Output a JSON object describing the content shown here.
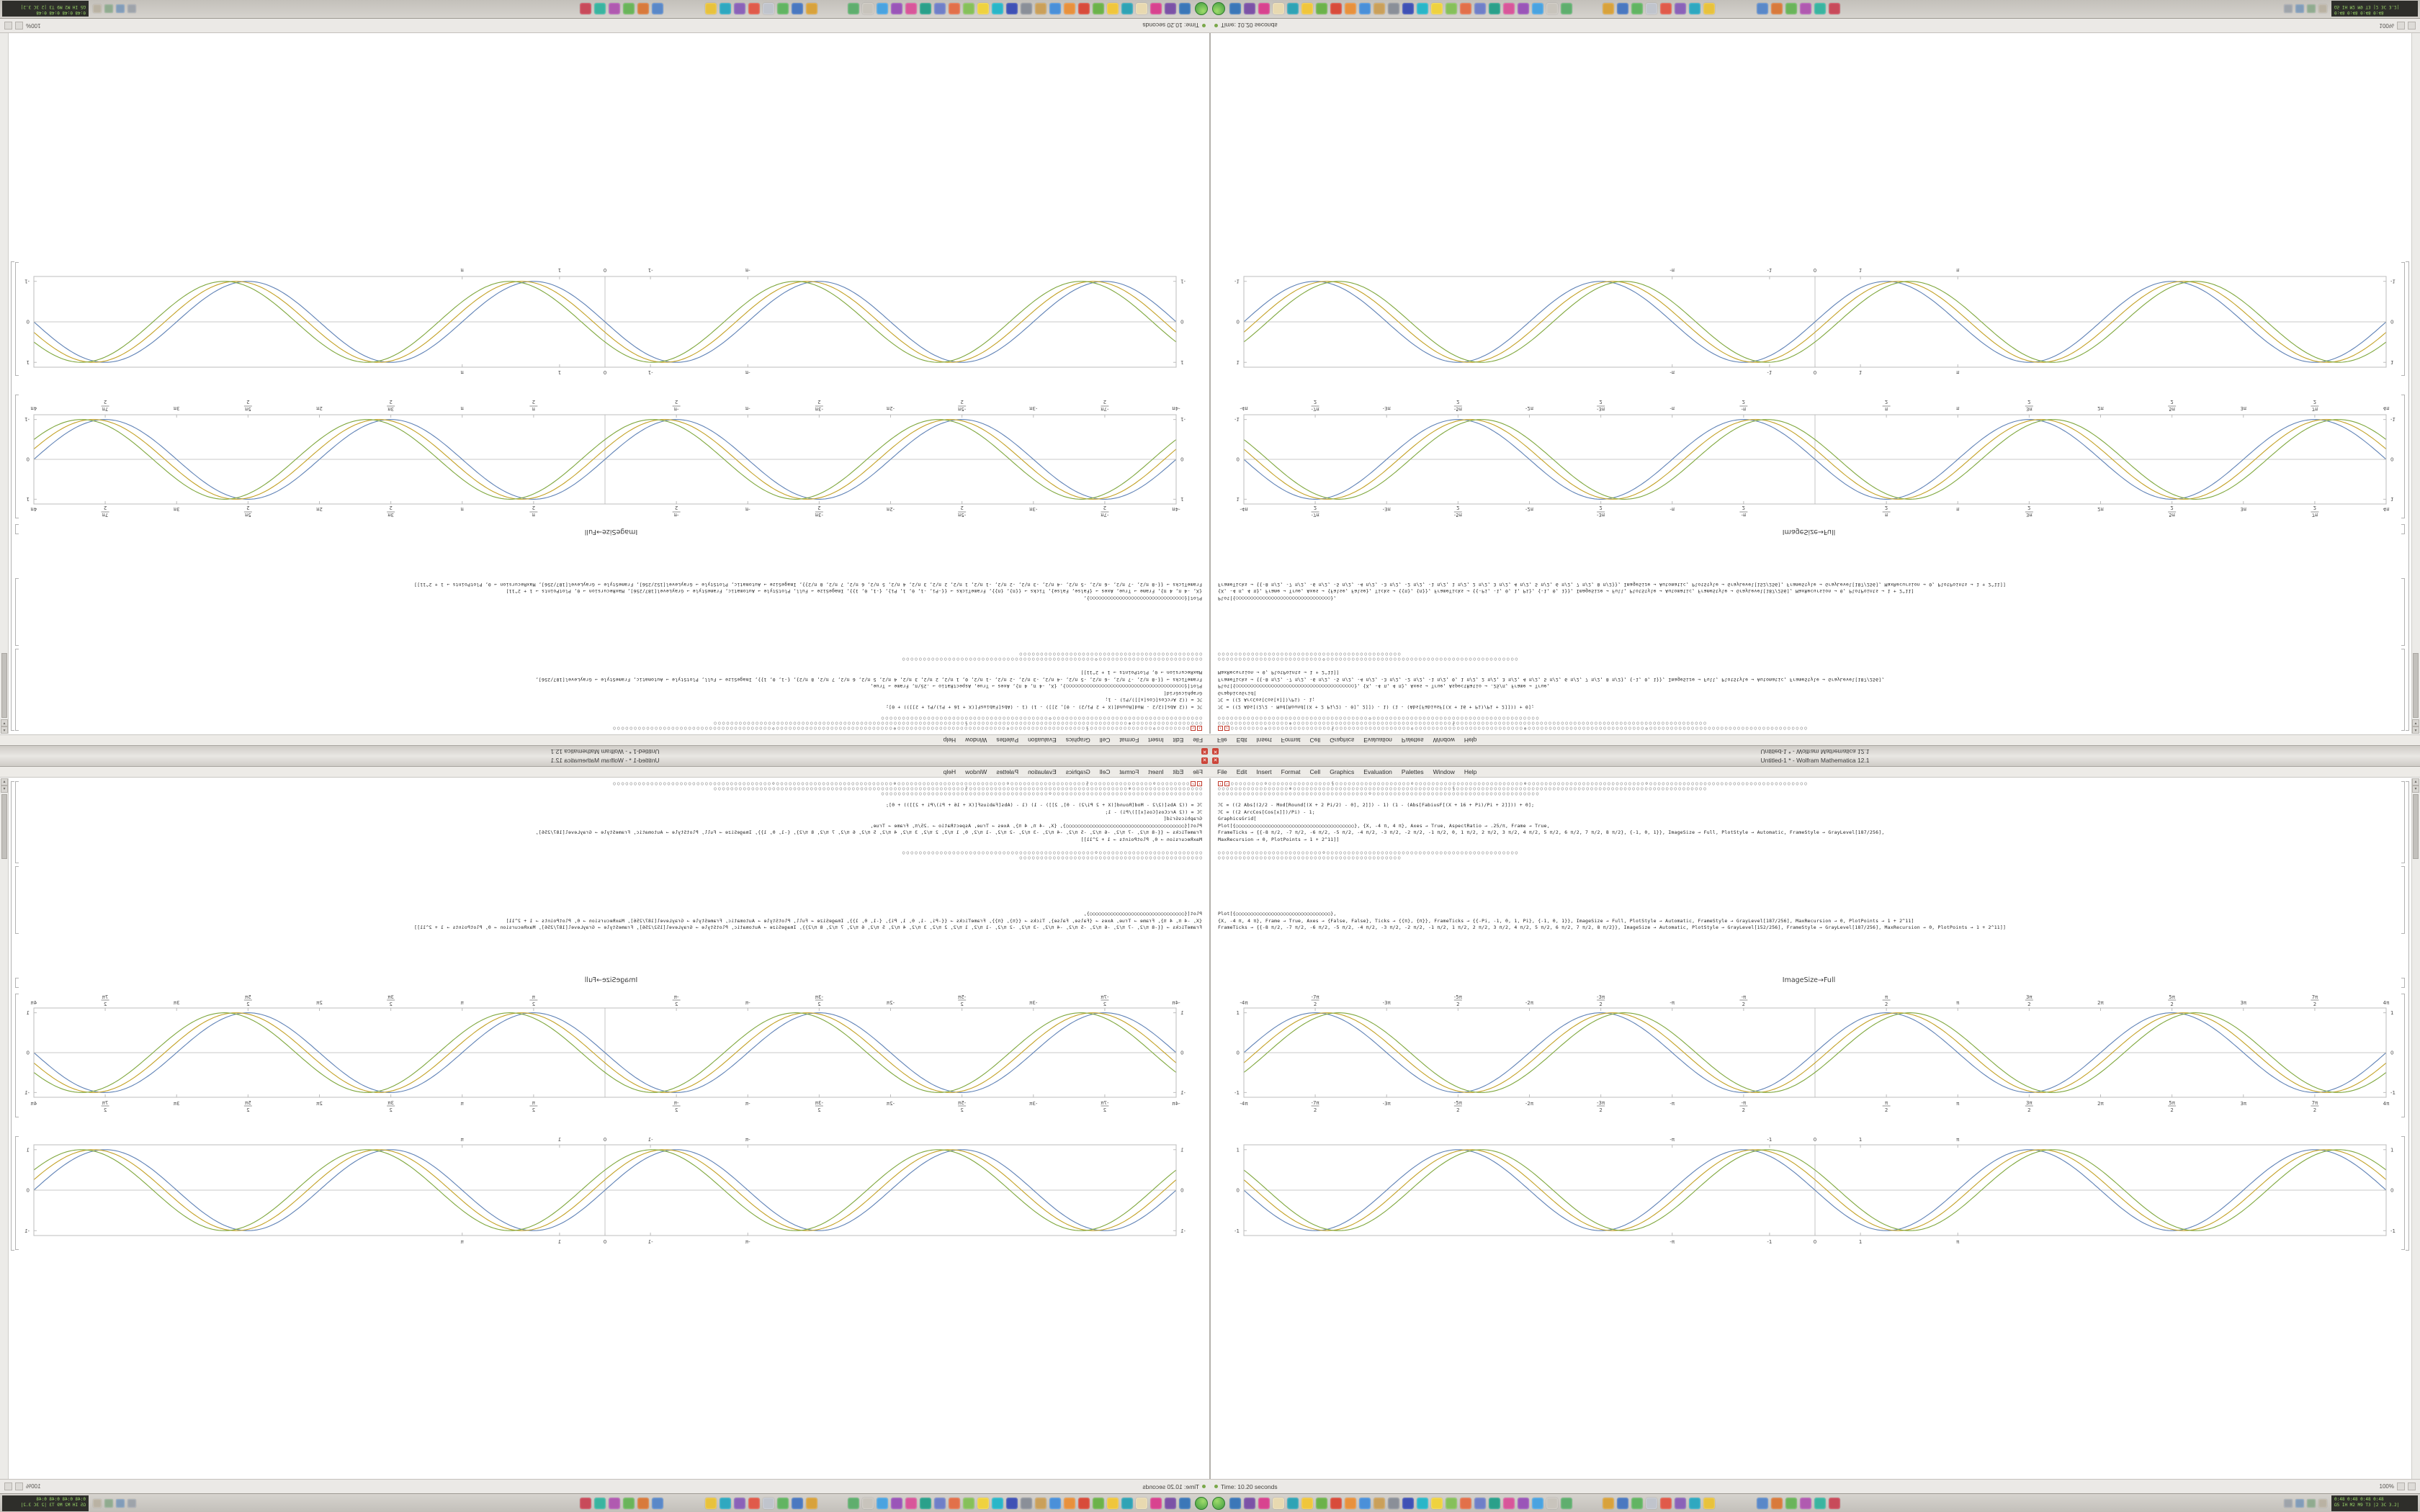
{
  "window": {
    "title": "Untitled-1 * - Wolfram Mathematica 12.1",
    "close_glyph": "✕"
  },
  "menu": {
    "items": [
      "File",
      "Edit",
      "Insert",
      "Format",
      "Cell",
      "Graphics",
      "Evaluation",
      "Palettes",
      "Window",
      "Help"
    ]
  },
  "notebook": {
    "missing_glyph": "✗",
    "code_group_1": [
      "○○○○○○○○⊙○○○○○○○○○○○○○○○§○○○○○○○○○○○○○○○○○○⊙○○○○○○○○○○○○○○○○○○○○○○○○○○⊕○○○○○○○○○○○○○○○○○○○○○○○○○○○○⊙○○○○○○○○○○○○○○○○○○○○○○○○○○○○○○○○○○○○○○",
      "○○○○○○○○○○○○○○○○○⊕○○○○○○○○○○○○○○○○○○○○○○○○○○○○○○○○○○○○○○§○○○○○○○○○○○○○○○○○○○○○○○○○○○○○○○○○○○○○○○○○○○○○○○○○○○○○○○○○○○○",
      "○○○○○○○○○○○○○○○○○○○○○○○○○○○○○○○○○○○○⊙○○○○○○○○○○○○○○○○○○○○○○○○○○○○○○○○○○○○○○○○"
    ],
    "code_group_2": [
      "ℐC = ((2 Abs[(2/2 - Mod[Round[(X + 2 Pi/2) - 0], 2]]) - 1) (1 - (Abs[FabiusF[(X + 16 + Pi)/Pi + 2]])) + 0];",
      "ℐC = ((2 ArcCos[Cos[x]])/Pi) - 1;",
      "GraphicsGrid[",
      "Plot[{○○○○○○○○○○○○○○○○○○○○○○○○○○○○○○○○○○○○○○○○}, {X, -4 π, 4 π}, Axes → True, AspectRatio → .25/π, Frame → True,",
      "FrameTicks → {{-8 π/2, -7 π/2, -6 π/2, -5 π/2, -4 π/2, -3 π/2, -2 π/2, -1 π/2, 0, 1 π/2, 2 π/2, 3 π/2, 4 π/2, 5 π/2, 6 π/2, 7 π/2, 8 π/2}, {-1, 0, 1}}, ImageSize → Full, PlotStyle → Automatic, FrameStyle → GrayLevel[187/256],",
      "MaxRecursion → 0, PlotPoints → 1 + 2^11]]"
    ],
    "code_group_3": [
      "○○○○○○○○○○○○○○○○○○○○○○○○○⊙○○○○○○○○○○○○○○○○○○○○○○○○○○○○○○○○○○○○○○○○○○○○○○",
      "○○○○○○○○○○○○○○○○○○○○○○○○○○○○○○○○○○○○○○○○○○○○"
    ],
    "code_group_4": [
      "Plot[{○○○○○○○○○○○○○○○○○○○○○○○○○○○○○○○○},",
      "{X, -4 π, 4 π}, Frame → True, Axes → {False, False}, Ticks → {{π}, {π}}, FrameTicks → {{-Pi, -1, 0, 1, Pi}, {-1, 0, 1}}, ImageSize → Full, PlotStyle → Automatic, FrameStyle → GrayLevel[187/256], MaxRecursion → 0, PlotPoints → 1 + 2^11]",
      "FrameTicks → {{-8 π/2, -7 π/2, -6 π/2, -5 π/2, -4 π/2, -3 π/2, -2 π/2, -1 π/2, 1 π/2, 2 π/2, 3 π/2, 4 π/2, 5 π/2, 6 π/2, 7 π/2, 8 π/2}}, ImageSize → Automatic, PlotStyle → GrayLevel[152/256], FrameStyle → GrayLevel[187/256], MaxRecursion → 0, PlotPoints → 1 + 2^11]]"
    ],
    "output_label": "ImageSize→Full",
    "plots": {
      "plot_a": {
        "type": "line",
        "title": "ImageSize→Full",
        "xmin": -12.566,
        "xmax": 12.566,
        "ymin": -1.12,
        "ymax": 1.12,
        "amp": 1.0,
        "axes": true,
        "frame_color": "#bcbcbc",
        "margins": [
          28,
          22,
          34,
          26
        ],
        "x_ticks": [
          {
            "v": -12.566,
            "t": "-4π"
          },
          {
            "v": -10.996,
            "n": "-7π",
            "d": "2"
          },
          {
            "v": -9.425,
            "t": "-3π"
          },
          {
            "v": -7.854,
            "n": "-5π",
            "d": "2"
          },
          {
            "v": -6.283,
            "t": "-2π"
          },
          {
            "v": -4.712,
            "n": "-3π",
            "d": "2"
          },
          {
            "v": -3.1416,
            "t": "-π"
          },
          {
            "v": -1.5708,
            "n": "-π",
            "d": "2"
          },
          {
            "v": 1.5708,
            "n": "π",
            "d": "2"
          },
          {
            "v": 3.1416,
            "t": "π"
          },
          {
            "v": 4.712,
            "n": "3π",
            "d": "2"
          },
          {
            "v": 6.283,
            "t": "2π"
          },
          {
            "v": 7.854,
            "n": "5π",
            "d": "2"
          },
          {
            "v": 9.425,
            "t": "3π"
          },
          {
            "v": 10.996,
            "n": "7π",
            "d": "2"
          },
          {
            "v": 12.566,
            "t": "4π"
          }
        ],
        "y_ticks": [
          -1,
          0,
          1
        ],
        "series": [
          {
            "name": "curve-blue",
            "color": "#5e81b5",
            "phase": 0,
            "sign": 1
          },
          {
            "name": "curve-olive",
            "color": "#c3a125",
            "phase": 0.26,
            "sign": 1
          },
          {
            "name": "curve-green",
            "color": "#7fa73d",
            "phase": 0.52,
            "sign": 1
          }
        ]
      },
      "plot_b": {
        "type": "line",
        "title": "",
        "xmin": -12.566,
        "xmax": 12.566,
        "ymin": -1.12,
        "ymax": 1.12,
        "amp": 1.0,
        "axes": true,
        "frame_color": "#bcbcbc",
        "margins": [
          28,
          14,
          34,
          18
        ],
        "x_ticks": [
          {
            "v": -3.1416,
            "t": "-π"
          },
          {
            "v": -1,
            "t": "-1"
          },
          {
            "v": 0,
            "t": "0"
          },
          {
            "v": 1,
            "t": "1"
          },
          {
            "v": 3.1416,
            "t": "π"
          }
        ],
        "y_ticks": [
          -1,
          0,
          1
        ],
        "series": [
          {
            "name": "curve-blue",
            "color": "#5e81b5",
            "phase": 0,
            "sign": -1
          },
          {
            "name": "curve-olive",
            "color": "#c3a125",
            "phase": 0.26,
            "sign": -1
          },
          {
            "name": "curve-green",
            "color": "#7fa73d",
            "phase": 0.52,
            "sign": -1
          }
        ]
      }
    }
  },
  "statusbar": {
    "timing": "Time: 10.20 seconds",
    "zoom": "100%"
  },
  "taskbar": {
    "launcher_icons": [
      "#3b77b8",
      "#7b52a6",
      "#d8438f",
      "#e8d9b0",
      "#2fa3b5",
      "#f0c63c",
      "#6cb24a",
      "#d84b3a",
      "#e8913c",
      "#4a90d9",
      "#caa05a",
      "#8a8f98",
      "#3f51b5",
      "#29b6c8",
      "#efd23f",
      "#86c05a",
      "#e2704a",
      "#6f7fc8",
      "#2aa08a",
      "#d8569a",
      "#9a55b8",
      "#4aa3e0",
      "#c8c4bc",
      "#5fae6e"
    ],
    "mid_icons": [
      "#d8a23c",
      "#4a78c0",
      "#62b462",
      "#c0c4cc",
      "#e05a4a",
      "#8a62b8",
      "#2fa8c0",
      "#e8c23c"
    ],
    "right_icons": [
      "#5a88c8",
      "#d87a3c",
      "#6ab45a",
      "#b05ab0",
      "#3ab4a0",
      "#c84a5a"
    ],
    "tray_icons": [
      "#9aa0a8",
      "#7a98b8",
      "#8aa88a",
      "#b8b0a0"
    ],
    "tray_stats": [
      "0:48 0:48 0:48 0:48",
      "Ω5 IH M2 M9 T3 |2 3C 3.2|"
    ]
  },
  "colors": {
    "accent_red": "#cc4438",
    "plot_blue": "#5e81b5",
    "plot_olive": "#c3a125",
    "plot_green": "#7fa73d",
    "frame_gray": "#bcbcbc"
  }
}
